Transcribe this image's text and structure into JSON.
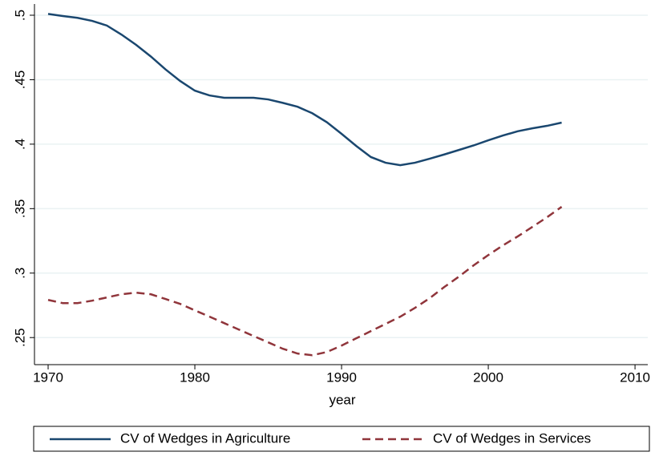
{
  "chart_data": {
    "type": "line",
    "x_label": "year",
    "x": [
      1970,
      1971,
      1972,
      1973,
      1974,
      1975,
      1976,
      1977,
      1978,
      1979,
      1980,
      1981,
      1982,
      1983,
      1984,
      1985,
      1986,
      1987,
      1988,
      1989,
      1990,
      1991,
      1992,
      1993,
      1994,
      1995,
      1996,
      1997,
      1998,
      1999,
      2000,
      2001,
      2002,
      2003,
      2004,
      2005
    ],
    "series": [
      {
        "name": "CV of Wedges in Agriculture",
        "color": "#1a476f",
        "dash": "solid",
        "values": [
          0.501,
          0.4994,
          0.498,
          0.4956,
          0.492,
          0.485,
          0.477,
          0.468,
          0.458,
          0.449,
          0.4415,
          0.4378,
          0.436,
          0.436,
          0.436,
          0.4347,
          0.432,
          0.429,
          0.424,
          0.417,
          0.408,
          0.3986,
          0.39,
          0.3856,
          0.3837,
          0.3856,
          0.3887,
          0.392,
          0.3955,
          0.399,
          0.403,
          0.4067,
          0.41,
          0.4123,
          0.4142,
          0.4167
        ]
      },
      {
        "name": "CV of Wedges in Services",
        "color": "#90353b",
        "dash": "dashed",
        "values": [
          0.2792,
          0.2767,
          0.2767,
          0.2786,
          0.2811,
          0.2836,
          0.2848,
          0.2836,
          0.2799,
          0.2761,
          0.2711,
          0.2662,
          0.2612,
          0.2562,
          0.2512,
          0.2463,
          0.2413,
          0.2376,
          0.2363,
          0.2388,
          0.2438,
          0.2494,
          0.255,
          0.2606,
          0.2662,
          0.273,
          0.2805,
          0.2892,
          0.2973,
          0.306,
          0.314,
          0.3215,
          0.3284,
          0.3358,
          0.3433,
          0.3514
        ]
      }
    ],
    "xlim": [
      1969.07,
      2010.87
    ],
    "xticks": [
      1970,
      1980,
      1990,
      2000,
      2010
    ],
    "ylim": [
      0.229,
      0.5087
    ],
    "yticks": [
      {
        "value": 0.25,
        "label": ".25"
      },
      {
        "value": 0.3,
        "label": ".3"
      },
      {
        "value": 0.35,
        "label": ".35"
      },
      {
        "value": 0.4,
        "label": ".4"
      },
      {
        "value": 0.45,
        "label": ".45"
      },
      {
        "value": 0.5,
        "label": ".5"
      }
    ],
    "grid": true,
    "legend": "bottom"
  }
}
